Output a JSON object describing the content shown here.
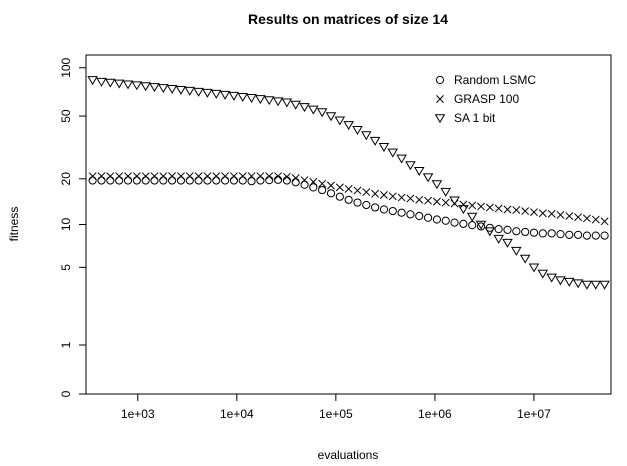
{
  "chart_data": {
    "type": "scatter",
    "title": "Results on matrices of size 14",
    "xlabel": "evaluations",
    "ylabel": "fitness",
    "x_scale": "log10",
    "y_scale": "log10(y+1)",
    "xlim": [
      300,
      60000000
    ],
    "ylim": [
      0,
      120
    ],
    "x_ticks": [
      {
        "value": 1000,
        "label": "1e+03"
      },
      {
        "value": 10000,
        "label": "1e+04"
      },
      {
        "value": 100000,
        "label": "1e+05"
      },
      {
        "value": 1000000,
        "label": "1e+06"
      },
      {
        "value": 10000000,
        "label": "1e+07"
      }
    ],
    "y_ticks": [
      {
        "value": 0,
        "label": "0"
      },
      {
        "value": 1,
        "label": "1"
      },
      {
        "value": 5,
        "label": "5"
      },
      {
        "value": 10,
        "label": "10"
      },
      {
        "value": 20,
        "label": "20"
      },
      {
        "value": 50,
        "label": "50"
      },
      {
        "value": 100,
        "label": "100"
      }
    ],
    "legend_position": "top-right",
    "grid": false,
    "series": [
      {
        "name": "Random LSMC",
        "marker": "circle",
        "x": [
          350,
          430,
          528,
          649,
          797,
          978,
          1201,
          1474,
          1810,
          2222,
          2729,
          3350,
          4113,
          5050,
          6200,
          7612,
          9346,
          11475,
          14088,
          17297,
          21237,
          26073,
          32012,
          39303,
          48254,
          59245,
          72739,
          89306,
          109646,
          134619,
          165280,
          202925,
          249143,
          305890,
          375562,
          461102,
          566125,
          695068,
          853380,
          1047750,
          1286390,
          1579380,
          1939100,
          2380760,
          2923020,
          3588770,
          4406150,
          5409690,
          6641810,
          8154560,
          10011900,
          12292200,
          15091900,
          18529400,
          22749700,
          27931300,
          34293000,
          42103600,
          51693100
        ],
        "y": [
          19.5,
          19.5,
          19.5,
          19.5,
          19.5,
          19.5,
          19.5,
          19.5,
          19.5,
          19.5,
          19.5,
          19.5,
          19.5,
          19.5,
          19.5,
          19.5,
          19.5,
          19.5,
          19.3,
          19.5,
          19.6,
          19.7,
          19.5,
          19.0,
          18.3,
          17.6,
          16.9,
          16.1,
          15.3,
          14.6,
          14.0,
          13.5,
          13.0,
          12.6,
          12.3,
          12.0,
          11.7,
          11.4,
          11.1,
          10.8,
          10.6,
          10.3,
          10.1,
          9.9,
          9.7,
          9.5,
          9.3,
          9.2,
          9.0,
          8.9,
          8.8,
          8.7,
          8.7,
          8.6,
          8.5,
          8.5,
          8.4,
          8.4,
          8.4
        ]
      },
      {
        "name": "GRASP 100",
        "marker": "cross",
        "x": [
          350,
          430,
          528,
          649,
          797,
          978,
          1201,
          1474,
          1810,
          2222,
          2729,
          3350,
          4113,
          5050,
          6200,
          7612,
          9346,
          11475,
          14088,
          17297,
          21237,
          26073,
          32012,
          39303,
          48254,
          59245,
          72739,
          89306,
          109646,
          134619,
          165280,
          202925,
          249143,
          305890,
          375562,
          461102,
          566125,
          695068,
          853380,
          1047750,
          1286390,
          1579380,
          1939100,
          2380760,
          2923020,
          3588770,
          4406150,
          5409690,
          6641810,
          8154560,
          10011900,
          12292200,
          15091900,
          18529400,
          22749700,
          27931300,
          34293000,
          42103600,
          51693100
        ],
        "y": [
          20.8,
          20.8,
          20.8,
          20.8,
          20.8,
          20.8,
          20.8,
          20.8,
          20.8,
          20.8,
          20.8,
          20.8,
          20.8,
          20.8,
          20.8,
          20.8,
          20.8,
          20.8,
          20.8,
          20.8,
          20.8,
          20.8,
          20.6,
          20.2,
          19.6,
          19.1,
          18.6,
          18.1,
          17.6,
          17.2,
          16.8,
          16.4,
          16.0,
          15.7,
          15.4,
          15.1,
          14.9,
          14.6,
          14.4,
          14.2,
          14.0,
          13.8,
          13.6,
          13.4,
          13.2,
          13.0,
          12.8,
          12.6,
          12.5,
          12.3,
          12.1,
          11.9,
          11.8,
          11.6,
          11.4,
          11.2,
          11.0,
          10.8,
          10.5
        ]
      },
      {
        "name": "SA 1 bit",
        "marker": "triangle-down",
        "x": [
          350,
          430,
          528,
          649,
          797,
          978,
          1201,
          1474,
          1810,
          2222,
          2729,
          3350,
          4113,
          5050,
          6200,
          7612,
          9346,
          11475,
          14088,
          17297,
          21237,
          26073,
          32012,
          39303,
          48254,
          59245,
          72739,
          89306,
          109646,
          134619,
          165280,
          202925,
          249143,
          305890,
          375562,
          461102,
          566125,
          695068,
          853380,
          1047750,
          1286390,
          1579380,
          1939100,
          2380760,
          2923020,
          3588770,
          4406150,
          5409690,
          6641810,
          8154560,
          10011900,
          12292200,
          15091900,
          18529400,
          22749700,
          27931300,
          34293000,
          42103600,
          51693100
        ],
        "y": [
          84,
          82,
          81,
          80,
          79,
          78,
          77,
          76,
          75,
          74,
          73,
          72,
          71,
          70,
          69,
          68,
          67,
          66,
          65,
          64,
          63,
          62,
          61,
          59,
          57,
          55,
          53,
          50,
          47,
          44,
          41,
          38,
          35,
          32,
          29.5,
          27,
          24.5,
          22.5,
          20.5,
          18.5,
          16.5,
          14.5,
          12.7,
          11.3,
          10,
          9,
          8,
          7.5,
          6.6,
          5.8,
          5.0,
          4.5,
          4.2,
          4.0,
          3.9,
          3.8,
          3.7,
          3.7,
          3.7
        ]
      }
    ]
  }
}
